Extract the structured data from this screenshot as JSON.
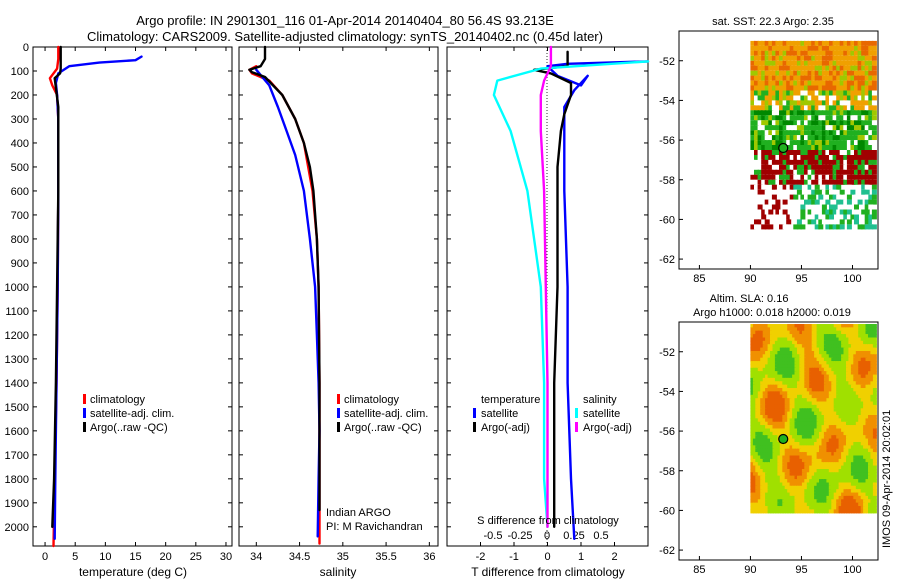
{
  "header": {
    "title_line1": "Argo profile: IN 2901301_116 01-Apr-2014 20140404_80 56.4S 93.213E",
    "title_line2": "Climatology: CARS2009. Satellite-adjusted climatology: synTS_20140402.nc (0.45d later)"
  },
  "chart_data": [
    {
      "id": "temperature",
      "type": "line",
      "xlabel": "temperature (deg C)",
      "ylabel": "",
      "xlim": [
        -2,
        31
      ],
      "ylim": [
        0,
        2080
      ],
      "y_inverted": true,
      "xticks": [
        0,
        5,
        10,
        15,
        20,
        25,
        30
      ],
      "xtick_labels": [
        "0",
        "5",
        "10",
        "15",
        "20",
        "25",
        "30"
      ],
      "yticks": [
        0,
        100,
        200,
        300,
        400,
        500,
        600,
        700,
        800,
        900,
        1000,
        1100,
        1200,
        1300,
        1400,
        1500,
        1600,
        1700,
        1800,
        1900,
        2000
      ],
      "ytick_labels": [
        "0",
        "100",
        "200",
        "300",
        "400",
        "500",
        "600",
        "700",
        "800",
        "900",
        "1000",
        "1100",
        "1200",
        "1300",
        "1400",
        "1500",
        "1600",
        "1700",
        "1800",
        "1900",
        "2000"
      ],
      "legend": [
        "climatology",
        "satellite-adj. clim.",
        "Argo(..raw -QC)"
      ],
      "legend_colors": [
        "#ff0000",
        "#0000ff",
        "#000000"
      ],
      "series": [
        {
          "name": "climatology",
          "color": "#ff0000",
          "points": [
            [
              2.2,
              0
            ],
            [
              2.2,
              50
            ],
            [
              2.0,
              90
            ],
            [
              0.8,
              130
            ],
            [
              1.2,
              160
            ],
            [
              2.0,
              200
            ],
            [
              2.2,
              300
            ],
            [
              2.2,
              600
            ],
            [
              2.1,
              1000
            ],
            [
              1.9,
              1400
            ],
            [
              1.6,
              1800
            ],
            [
              1.4,
              2080
            ]
          ]
        },
        {
          "name": "satellite-adj. clim.",
          "color": "#0000ff",
          "points": [
            [
              16.0,
              40
            ],
            [
              15.0,
              55
            ],
            [
              9.0,
              65
            ],
            [
              4.0,
              80
            ],
            [
              2.2,
              110
            ],
            [
              1.8,
              150
            ],
            [
              2.0,
              200
            ],
            [
              2.2,
              300
            ],
            [
              2.2,
              600
            ],
            [
              2.1,
              1000
            ],
            [
              1.9,
              1400
            ],
            [
              1.7,
              1800
            ],
            [
              1.6,
              2050
            ]
          ]
        },
        {
          "name": "Argo(..raw -QC)",
          "color": "#000000",
          "points": [
            [
              2.6,
              0
            ],
            [
              2.6,
              90
            ],
            [
              2.5,
              110
            ],
            [
              1.6,
              130
            ],
            [
              1.8,
              170
            ],
            [
              2.2,
              250
            ],
            [
              2.2,
              600
            ],
            [
              2.0,
              1000
            ],
            [
              1.8,
              1400
            ],
            [
              1.5,
              1800
            ],
            [
              1.2,
              2000
            ]
          ]
        }
      ]
    },
    {
      "id": "salinity",
      "type": "line",
      "xlabel": "salinity",
      "ylabel": "",
      "xlim": [
        33.8,
        36.1
      ],
      "ylim": [
        0,
        2080
      ],
      "y_inverted": true,
      "xticks": [
        34,
        34.5,
        35,
        35.5,
        36
      ],
      "xtick_labels": [
        "34",
        "34.5",
        "35",
        "35.5",
        "36"
      ],
      "legend": [
        "climatology",
        "satellite-adj. clim.",
        "Argo(..raw -QC)"
      ],
      "legend_colors": [
        "#ff0000",
        "#0000ff",
        "#000000"
      ],
      "annotation_line1": "Indian ARGO",
      "annotation_line2": "PI: M Ravichandran",
      "series": [
        {
          "name": "climatology",
          "color": "#ff0000",
          "points": [
            [
              34.0,
              80
            ],
            [
              33.92,
              95
            ],
            [
              33.95,
              110
            ],
            [
              34.15,
              140
            ],
            [
              34.3,
              200
            ],
            [
              34.45,
              300
            ],
            [
              34.55,
              400
            ],
            [
              34.6,
              500
            ],
            [
              34.65,
              600
            ],
            [
              34.7,
              800
            ],
            [
              34.72,
              1000
            ],
            [
              34.73,
              1400
            ],
            [
              34.73,
              1800
            ],
            [
              34.73,
              2070
            ]
          ]
        },
        {
          "name": "satellite-adj. clim.",
          "color": "#0000ff",
          "points": [
            [
              34.0,
              95
            ],
            [
              34.15,
              160
            ],
            [
              34.25,
              250
            ],
            [
              34.35,
              350
            ],
            [
              34.45,
              450
            ],
            [
              34.55,
              600
            ],
            [
              34.62,
              800
            ],
            [
              34.68,
              1000
            ],
            [
              34.7,
              1200
            ],
            [
              34.72,
              1400
            ],
            [
              34.73,
              1600
            ],
            [
              34.72,
              1800
            ],
            [
              34.71,
              2040
            ]
          ]
        },
        {
          "name": "Argo(..raw -QC)",
          "color": "#000000",
          "points": [
            [
              34.1,
              0
            ],
            [
              34.1,
              50
            ],
            [
              34.05,
              80
            ],
            [
              33.92,
              95
            ],
            [
              33.95,
              105
            ],
            [
              34.1,
              125
            ],
            [
              34.3,
              200
            ],
            [
              34.45,
              300
            ],
            [
              34.55,
              400
            ],
            [
              34.62,
              500
            ],
            [
              34.66,
              600
            ],
            [
              34.7,
              800
            ],
            [
              34.72,
              1000
            ],
            [
              34.73,
              1400
            ],
            [
              34.73,
              1800
            ],
            [
              34.73,
              1930
            ]
          ]
        }
      ]
    },
    {
      "id": "difference",
      "type": "line",
      "xlabel": "T difference from climatology",
      "xlabel2": "S difference from climatology",
      "xlim": [
        -3,
        3
      ],
      "ylim": [
        0,
        2080
      ],
      "y_inverted": true,
      "xticks": [
        -2,
        -1,
        0,
        1,
        2
      ],
      "xtick_labels": [
        "-2",
        "-1",
        "0",
        "1",
        "2"
      ],
      "sticks": [
        -0.5,
        -0.25,
        0,
        0.25,
        0.5
      ],
      "stick_labels": [
        "-0.5",
        "-0.25",
        "0",
        "0.25",
        "0.5"
      ],
      "legend_header_t": "temperature",
      "legend_header_s": "salinity",
      "legend_t": [
        "satellite",
        "Argo(-adj)"
      ],
      "legend_t_colors": [
        "#0000ff",
        "#000000"
      ],
      "legend_s": [
        "satellite",
        "Argo(-adj)"
      ],
      "legend_s_colors": [
        "#00ffff",
        "#ff00ff"
      ],
      "series": [
        {
          "name": "T satellite",
          "color": "#0000ff",
          "points": [
            [
              3.0,
              60
            ],
            [
              0.6,
              70
            ],
            [
              0.0,
              80
            ],
            [
              0.3,
              120
            ],
            [
              1.0,
              160
            ],
            [
              1.2,
              120
            ],
            [
              0.8,
              180
            ],
            [
              0.5,
              250
            ],
            [
              0.5,
              600
            ],
            [
              0.6,
              1000
            ],
            [
              0.6,
              1400
            ],
            [
              0.7,
              1800
            ],
            [
              0.8,
              2050
            ]
          ]
        },
        {
          "name": "T Argo(-adj)",
          "color": "#000000",
          "points": [
            [
              0.6,
              20
            ],
            [
              0.6,
              80
            ],
            [
              -0.4,
              95
            ],
            [
              0.1,
              110
            ],
            [
              0.7,
              150
            ],
            [
              0.7,
              200
            ],
            [
              0.5,
              280
            ],
            [
              0.4,
              350
            ],
            [
              0.3,
              500
            ],
            [
              0.3,
              1000
            ],
            [
              0.2,
              1400
            ],
            [
              0.2,
              2000
            ]
          ]
        },
        {
          "name": "S satellite",
          "color": "#00ffff",
          "points": [
            [
              3.0,
              60
            ],
            [
              -0.2,
              90
            ],
            [
              -1.5,
              140
            ],
            [
              -1.6,
              200
            ],
            [
              -1.1,
              350
            ],
            [
              -0.6,
              600
            ],
            [
              -0.2,
              1000
            ],
            [
              -0.1,
              1400
            ],
            [
              -0.1,
              1800
            ],
            [
              0.0,
              2000
            ]
          ]
        },
        {
          "name": "S Argo(-adj)",
          "color": "#ff00ff",
          "points": [
            [
              0.1,
              0
            ],
            [
              0.1,
              80
            ],
            [
              -0.1,
              140
            ],
            [
              -0.2,
              200
            ],
            [
              -0.2,
              350
            ],
            [
              -0.1,
              600
            ],
            [
              -0.05,
              1000
            ],
            [
              0.0,
              1400
            ],
            [
              0.0,
              1800
            ],
            [
              0.0,
              2000
            ]
          ]
        }
      ]
    },
    {
      "id": "sst_map",
      "type": "heatmap",
      "title": "sat. SST: 22.3  Argo: 2.35",
      "xlim": [
        83,
        102.5
      ],
      "ylim": [
        -62.5,
        -50.5
      ],
      "xticks": [
        85,
        90,
        95,
        100
      ],
      "xtick_labels": [
        "85",
        "90",
        "95",
        "100"
      ],
      "yticks": [
        -52,
        -54,
        -56,
        -58,
        -60,
        -62
      ],
      "ytick_labels": [
        "-52",
        "-54",
        "-56",
        "-58",
        "-60",
        "-62"
      ],
      "marker": [
        93.213,
        -56.4
      ],
      "palette": [
        "#f0a000",
        "#e86800",
        "#a0c800",
        "#20b020",
        "#008800",
        "#a00000",
        "#ffffff",
        "#20c090"
      ]
    },
    {
      "id": "sla_map",
      "type": "heatmap",
      "title_line1": "Altim. SLA: 0.16",
      "title_line2": "Argo h1000: 0.018 h2000: 0.019",
      "xlim": [
        83,
        102.5
      ],
      "ylim": [
        -62.5,
        -50.5
      ],
      "xticks": [
        85,
        90,
        95,
        100
      ],
      "xtick_labels": [
        "85",
        "90",
        "95",
        "100"
      ],
      "yticks": [
        -52,
        -54,
        -56,
        -58,
        -60,
        -62
      ],
      "ytick_labels": [
        "-52",
        "-54",
        "-56",
        "-58",
        "-60",
        "-62"
      ],
      "marker": [
        93.213,
        -56.4
      ],
      "palette": [
        "#e86000",
        "#f09000",
        "#f0d000",
        "#a0e000",
        "#40c020"
      ]
    }
  ],
  "footer": {
    "stamp": "IMOS 09-Apr-2014 20:02:01"
  }
}
